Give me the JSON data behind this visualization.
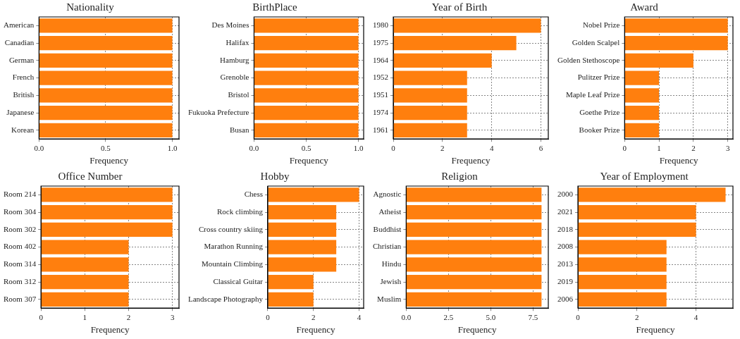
{
  "chart_data": [
    {
      "type": "bar",
      "orientation": "horizontal",
      "title": "Nationality",
      "xlabel": "Frequency",
      "categories": [
        "American",
        "Canadian",
        "German",
        "French",
        "British",
        "Japanese",
        "Korean"
      ],
      "values": [
        1,
        1,
        1,
        1,
        1,
        1,
        1
      ],
      "color": "#ff7f0e",
      "xlim": [
        0,
        1.05
      ],
      "xticks": [
        {
          "value": 0,
          "label": "0.0"
        },
        {
          "value": 0.5,
          "label": "0.5"
        },
        {
          "value": 1,
          "label": "1.0"
        }
      ],
      "grid": true
    },
    {
      "type": "bar",
      "orientation": "horizontal",
      "title": "BirthPlace",
      "xlabel": "Frequency",
      "categories": [
        "Des Moines",
        "Halifax",
        "Hamburg",
        "Grenoble",
        "Bristol",
        "Fukuoka Prefecture",
        "Busan"
      ],
      "values": [
        1,
        1,
        1,
        1,
        1,
        1,
        1
      ],
      "color": "#ff7f0e",
      "xlim": [
        0,
        1.05
      ],
      "xticks": [
        {
          "value": 0,
          "label": "0.0"
        },
        {
          "value": 0.5,
          "label": "0.5"
        },
        {
          "value": 1,
          "label": "1.0"
        }
      ],
      "grid": true
    },
    {
      "type": "bar",
      "orientation": "horizontal",
      "title": "Year of Birth",
      "xlabel": "Frequency",
      "categories": [
        "1980",
        "1975",
        "1964",
        "1952",
        "1951",
        "1974",
        "1961"
      ],
      "values": [
        6,
        5,
        4,
        3,
        3,
        3,
        3
      ],
      "color": "#ff7f0e",
      "xlim": [
        0,
        6.3
      ],
      "xticks": [
        0,
        2,
        4,
        6
      ],
      "grid": true
    },
    {
      "type": "bar",
      "orientation": "horizontal",
      "title": "Award",
      "xlabel": "Frequency",
      "categories": [
        "Nobel Prize",
        "Golden Scalpel",
        "Golden Stethoscope",
        "Pulitzer Prize",
        "Maple Leaf Prize",
        "Goethe Prize",
        "Booker Prize"
      ],
      "values": [
        3,
        3,
        2,
        1,
        1,
        1,
        1
      ],
      "color": "#ff7f0e",
      "xlim": [
        0,
        3.15
      ],
      "xticks": [
        0,
        1,
        2,
        3
      ],
      "grid": true
    },
    {
      "type": "bar",
      "orientation": "horizontal",
      "title": "Office Number",
      "xlabel": "Frequency",
      "categories": [
        "Room 214",
        "Room 304",
        "Room 302",
        "Room 402",
        "Room 314",
        "Room 312",
        "Room 307"
      ],
      "values": [
        3,
        3,
        3,
        2,
        2,
        2,
        2
      ],
      "color": "#ff7f0e",
      "xlim": [
        0,
        3.15
      ],
      "xticks": [
        0,
        1,
        2,
        3
      ],
      "grid": true
    },
    {
      "type": "bar",
      "orientation": "horizontal",
      "title": "Hobby",
      "xlabel": "Frequency",
      "categories": [
        "Chess",
        "Rock climbing",
        "Cross country skiing",
        "Marathon Running",
        "Mountain Climbing",
        "Classical Guitar",
        "Landscape Photography"
      ],
      "values": [
        4,
        3,
        3,
        3,
        3,
        2,
        2
      ],
      "color": "#ff7f0e",
      "xlim": [
        0,
        4.2
      ],
      "xticks": [
        0,
        2,
        4
      ],
      "grid": true
    },
    {
      "type": "bar",
      "orientation": "horizontal",
      "title": "Religion",
      "xlabel": "Frequency",
      "categories": [
        "Agnostic",
        "Atheist",
        "Buddhist",
        "Christian",
        "Hindu",
        "Jewish",
        "Muslim"
      ],
      "values": [
        8,
        8,
        8,
        8,
        8,
        8,
        8
      ],
      "color": "#ff7f0e",
      "xlim": [
        0,
        8.4
      ],
      "xticks": [
        {
          "value": 0,
          "label": "0.0"
        },
        {
          "value": 2.5,
          "label": "2.5"
        },
        {
          "value": 5,
          "label": "5.0"
        },
        {
          "value": 7.5,
          "label": "7.5"
        }
      ],
      "grid": true
    },
    {
      "type": "bar",
      "orientation": "horizontal",
      "title": "Year of Employment",
      "xlabel": "Frequency",
      "categories": [
        "2000",
        "2021",
        "2018",
        "2008",
        "2013",
        "2019",
        "2006"
      ],
      "values": [
        5,
        4,
        4,
        3,
        3,
        3,
        3
      ],
      "color": "#ff7f0e",
      "xlim": [
        0,
        5.25
      ],
      "xticks": [
        0,
        2,
        4
      ],
      "grid": true
    }
  ]
}
